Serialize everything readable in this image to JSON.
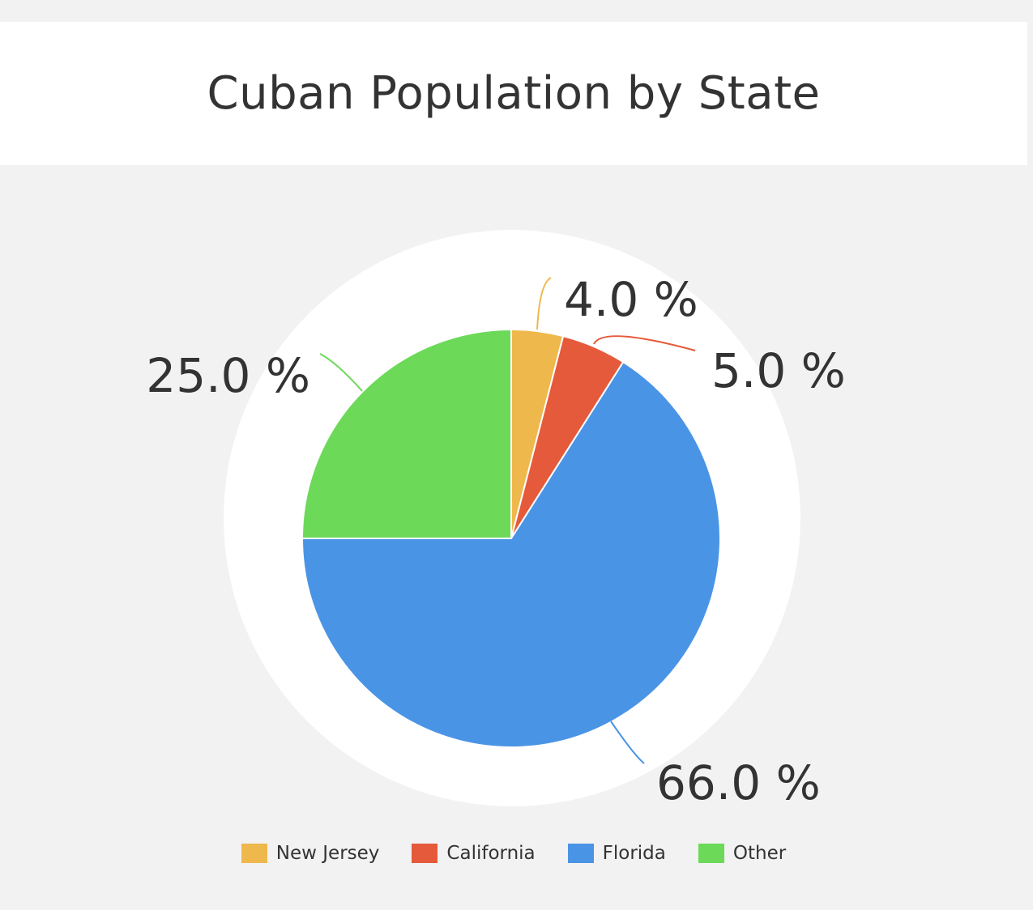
{
  "chart_data": {
    "type": "pie",
    "title": "Cuban Population by State",
    "slices": [
      {
        "name": "New Jersey",
        "value": 4.0,
        "label": "4.0 %",
        "color": "#efb84c"
      },
      {
        "name": "California",
        "value": 5.0,
        "label": "5.0 %",
        "color": "#e55a3a"
      },
      {
        "name": "Florida",
        "value": 66.0,
        "label": "66.0 %",
        "color": "#4a94e6"
      },
      {
        "name": "Other",
        "value": 25.0,
        "label": "25.0 %",
        "color": "#6cd959"
      }
    ],
    "legend_position": "bottom",
    "start_angle": "top",
    "direction": "clockwise"
  }
}
